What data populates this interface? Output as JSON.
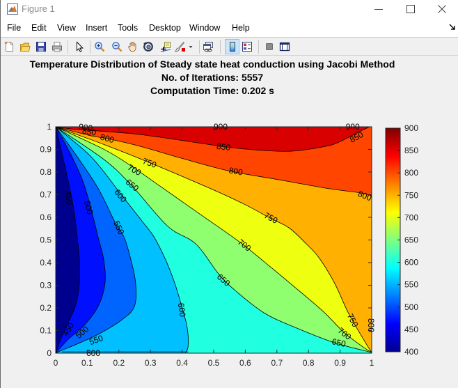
{
  "window": {
    "title": "Figure 1",
    "controls": [
      "minimize-icon",
      "maximize-icon",
      "close-icon"
    ]
  },
  "menu": {
    "items": [
      "File",
      "Edit",
      "View",
      "Insert",
      "Tools",
      "Desktop",
      "Window",
      "Help"
    ],
    "dock_icon": "dock-arrow-icon"
  },
  "toolbar": {
    "buttons": [
      {
        "icon": "new-figure-icon"
      },
      {
        "icon": "open-file-icon"
      },
      {
        "icon": "save-icon"
      },
      {
        "icon": "print-icon"
      },
      {
        "icon": "pointer-icon"
      },
      {
        "icon": "zoom-in-icon"
      },
      {
        "icon": "zoom-out-icon"
      },
      {
        "icon": "pan-hand-icon"
      },
      {
        "icon": "rotate-3d-icon"
      },
      {
        "icon": "data-cursor-icon"
      },
      {
        "icon": "brush-icon"
      },
      {
        "icon": "link-plot-icon"
      },
      {
        "icon": "insert-colorbar-icon",
        "selected": true
      },
      {
        "icon": "insert-legend-icon"
      },
      {
        "icon": "hide-plot-tools-icon"
      },
      {
        "icon": "show-plot-tools-icon"
      }
    ]
  },
  "chart_data": {
    "type": "contour",
    "title": [
      "Temperature Distribution of Steady state heat conduction using Jacobi Method",
      "No. of Iterations: 5557",
      "Computation Time: 0.202 s"
    ],
    "xlabel": "",
    "ylabel": "",
    "xlim": [
      0,
      1
    ],
    "ylim": [
      0,
      1
    ],
    "grid": false,
    "xticks": [
      0,
      0.1,
      0.2,
      0.3,
      0.4,
      0.5,
      0.6,
      0.7,
      0.8,
      0.9,
      1
    ],
    "yticks": [
      0,
      0.1,
      0.2,
      0.3,
      0.4,
      0.5,
      0.6,
      0.7,
      0.8,
      0.9,
      1
    ],
    "colorbar": {
      "position": "right",
      "range": [
        400,
        900
      ],
      "colormap": "jet",
      "ticks": [
        400,
        450,
        500,
        550,
        600,
        650,
        700,
        750,
        800,
        850,
        900
      ]
    },
    "levels": [
      450,
      500,
      550,
      600,
      650,
      700,
      750,
      800,
      850,
      900
    ],
    "band_colors": [
      "#00008f",
      "#0010ff",
      "#0064ff",
      "#00c0ff",
      "#20ffdf",
      "#8fff70",
      "#efff10",
      "#ffb000",
      "#ff4500",
      "#d80000"
    ],
    "contours": [
      {
        "level": 450,
        "points": [
          [
            0,
            1
          ],
          [
            0.035,
            0.79
          ],
          [
            0.057,
            0.637
          ],
          [
            0.068,
            0.514
          ],
          [
            0.075,
            0.412
          ],
          [
            0.075,
            0.308
          ],
          [
            0.062,
            0.206
          ],
          [
            0.035,
            0.123
          ],
          [
            0.013,
            0.052
          ],
          [
            0,
            0
          ]
        ]
      },
      {
        "level": 500,
        "points": [
          [
            0,
            1
          ],
          [
            0.046,
            0.883
          ],
          [
            0.086,
            0.76
          ],
          [
            0.112,
            0.637
          ],
          [
            0.134,
            0.514
          ],
          [
            0.152,
            0.412
          ],
          [
            0.156,
            0.308
          ],
          [
            0.134,
            0.206
          ],
          [
            0.09,
            0.123
          ],
          [
            0.04,
            0.062
          ],
          [
            0,
            0
          ]
        ]
      },
      {
        "level": 550,
        "points": [
          [
            0,
            1
          ],
          [
            0.068,
            0.868
          ],
          [
            0.134,
            0.729
          ],
          [
            0.189,
            0.575
          ],
          [
            0.216,
            0.514
          ],
          [
            0.238,
            0.412
          ],
          [
            0.253,
            0.308
          ],
          [
            0.249,
            0.206
          ],
          [
            0.207,
            0.145
          ],
          [
            0.134,
            0.083
          ],
          [
            0.062,
            0.037
          ],
          [
            0.018,
            0.012
          ],
          [
            0,
            0
          ]
        ]
      },
      {
        "level": 600,
        "points": [
          [
            0,
            1
          ],
          [
            0.112,
            0.868
          ],
          [
            0.205,
            0.705
          ],
          [
            0.278,
            0.575
          ],
          [
            0.311,
            0.514
          ],
          [
            0.348,
            0.412
          ],
          [
            0.377,
            0.308
          ],
          [
            0.399,
            0.206
          ],
          [
            0.416,
            0.114
          ],
          [
            0.419,
            0.03
          ],
          [
            0.41,
            0
          ]
        ]
      },
      {
        "level": 650,
        "points": [
          [
            0,
            1
          ],
          [
            0.156,
            0.852
          ],
          [
            0.244,
            0.735
          ],
          [
            0.355,
            0.56
          ],
          [
            0.443,
            0.483
          ],
          [
            0.515,
            0.351
          ],
          [
            0.568,
            0.277
          ],
          [
            0.663,
            0.175
          ],
          [
            0.773,
            0.105
          ],
          [
            0.883,
            0.046
          ],
          [
            1,
            0.003
          ]
        ]
      },
      {
        "level": 700,
        "points": [
          [
            0,
            1
          ],
          [
            0.156,
            0.898
          ],
          [
            0.244,
            0.822
          ],
          [
            0.333,
            0.735
          ],
          [
            0.465,
            0.606
          ],
          [
            0.581,
            0.492
          ],
          [
            0.663,
            0.4
          ],
          [
            0.751,
            0.298
          ],
          [
            0.846,
            0.185
          ],
          [
            0.912,
            0.092
          ],
          [
            0.969,
            0.031
          ],
          [
            1,
            0.003
          ]
        ]
      },
      {
        "level": 750,
        "points": [
          [
            0,
            1
          ],
          [
            0.156,
            0.92
          ],
          [
            0.295,
            0.843
          ],
          [
            0.487,
            0.729
          ],
          [
            0.597,
            0.658
          ],
          [
            0.678,
            0.597
          ],
          [
            0.738,
            0.554
          ],
          [
            0.793,
            0.483
          ],
          [
            0.833,
            0.422
          ],
          [
            0.883,
            0.308
          ],
          [
            0.927,
            0.175
          ],
          [
            0.978,
            0.052
          ],
          [
            1,
            0.003
          ]
        ]
      },
      {
        "level": 800,
        "points": [
          [
            0,
            1
          ],
          [
            0.112,
            0.96
          ],
          [
            0.163,
            0.948
          ],
          [
            0.267,
            0.914
          ],
          [
            0.396,
            0.862
          ],
          [
            0.546,
            0.806
          ],
          [
            0.707,
            0.766
          ],
          [
            0.855,
            0.729
          ],
          [
            0.965,
            0.708
          ],
          [
            1,
            0.695
          ]
        ]
      },
      {
        "level": 850,
        "points": [
          [
            0,
            1
          ],
          [
            0.068,
            0.988
          ],
          [
            0.267,
            0.966
          ],
          [
            0.524,
            0.914
          ],
          [
            0.634,
            0.898
          ],
          [
            0.744,
            0.892
          ],
          [
            0.855,
            0.914
          ],
          [
            0.905,
            0.938
          ],
          [
            0.956,
            0.975
          ],
          [
            0.993,
            1
          ]
        ]
      }
    ],
    "extra_lines": [
      {
        "level": 600,
        "points": [
          [
            0.02,
            0.006
          ],
          [
            0.42,
            0.006
          ]
        ]
      }
    ],
    "labels": [
      {
        "text": "900",
        "x": 0.095,
        "y": 0.997,
        "rot": 8
      },
      {
        "text": "900",
        "x": 0.522,
        "y": 1.0,
        "rot": 0
      },
      {
        "text": "900",
        "x": 0.94,
        "y": 1.0,
        "rot": 0
      },
      {
        "text": "850",
        "x": 0.106,
        "y": 0.978,
        "rot": 10
      },
      {
        "text": "850",
        "x": 0.531,
        "y": 0.911,
        "rot": 6
      },
      {
        "text": "850",
        "x": 0.952,
        "y": 0.954,
        "rot": -28
      },
      {
        "text": "800",
        "x": 0.163,
        "y": 0.948,
        "rot": 15
      },
      {
        "text": "800",
        "x": 0.57,
        "y": 0.803,
        "rot": 10
      },
      {
        "text": "800",
        "x": 0.978,
        "y": 0.695,
        "rot": 22
      },
      {
        "text": "800",
        "x": 0.998,
        "y": 0.123,
        "rot": 90
      },
      {
        "text": "750",
        "x": 0.297,
        "y": 0.84,
        "rot": 20
      },
      {
        "text": "750",
        "x": 0.681,
        "y": 0.597,
        "rot": 28
      },
      {
        "text": "750",
        "x": 0.94,
        "y": 0.145,
        "rot": 62
      },
      {
        "text": "700",
        "x": 0.249,
        "y": 0.809,
        "rot": 30
      },
      {
        "text": "700",
        "x": 0.597,
        "y": 0.477,
        "rot": 38
      },
      {
        "text": "700",
        "x": 0.914,
        "y": 0.086,
        "rot": 38
      },
      {
        "text": "650",
        "x": 0.242,
        "y": 0.742,
        "rot": 40
      },
      {
        "text": "650",
        "x": 0.531,
        "y": 0.323,
        "rot": 40
      },
      {
        "text": "650",
        "x": 0.896,
        "y": 0.046,
        "rot": 12
      },
      {
        "text": "600",
        "x": 0.205,
        "y": 0.695,
        "rot": 50
      },
      {
        "text": "600",
        "x": 0.399,
        "y": 0.191,
        "rot": 82
      },
      {
        "text": "600",
        "x": 0.119,
        "y": 0.0,
        "rot": 0
      },
      {
        "text": "550",
        "x": 0.2,
        "y": 0.554,
        "rot": 65
      },
      {
        "text": "550",
        "x": 0.128,
        "y": 0.058,
        "rot": -20
      },
      {
        "text": "500",
        "x": 0.104,
        "y": 0.643,
        "rot": 75
      },
      {
        "text": "500",
        "x": 0.084,
        "y": 0.092,
        "rot": -40
      },
      {
        "text": "450",
        "x": 0.042,
        "y": 0.686,
        "rot": 85
      },
      {
        "text": "450",
        "x": 0.04,
        "y": 0.105,
        "rot": -60
      }
    ]
  }
}
